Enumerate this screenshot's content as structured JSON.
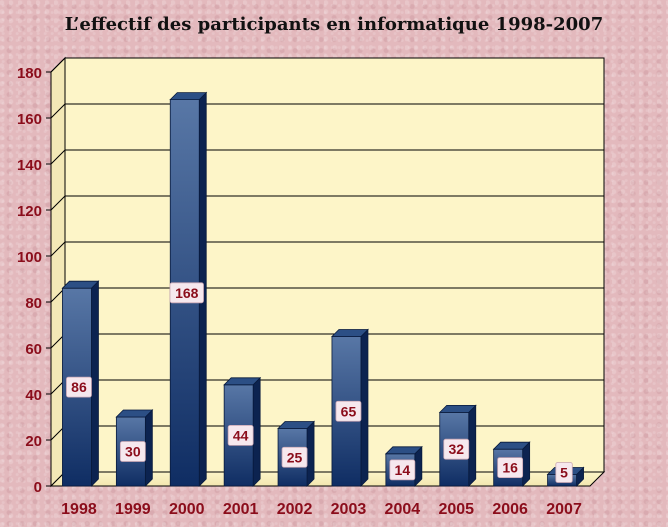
{
  "chart_data": {
    "type": "bar",
    "title": "L’effectif des participants en informatique 1998-2007",
    "categories": [
      "1998",
      "1999",
      "2000",
      "2001",
      "2002",
      "2003",
      "2004",
      "2005",
      "2006",
      "2007"
    ],
    "values": [
      86,
      30,
      168,
      44,
      25,
      65,
      14,
      32,
      16,
      5
    ],
    "data_labels": [
      "86",
      "30",
      "168",
      "44",
      "25",
      "65",
      "14",
      "32",
      "16",
      "5"
    ],
    "y_ticks": [
      "0",
      "20",
      "40",
      "60",
      "80",
      "100",
      "120",
      "140",
      "160",
      "180"
    ],
    "ylim": [
      0,
      180
    ],
    "xlabel": "",
    "ylabel": "",
    "grid": true,
    "legend": "none",
    "style": "3d-column"
  },
  "colors": {
    "plot_background": "#fdf5c8",
    "bar_dark": "#0f2d63",
    "bar_light": "#5877a6",
    "bar_top": "#2c4f85",
    "bar_side": "#0c2350",
    "gridline": "#000000",
    "tick_label": "#8b0d1b",
    "data_label_text": "#8b0d1b",
    "data_label_bg": "#f6e8ee"
  }
}
